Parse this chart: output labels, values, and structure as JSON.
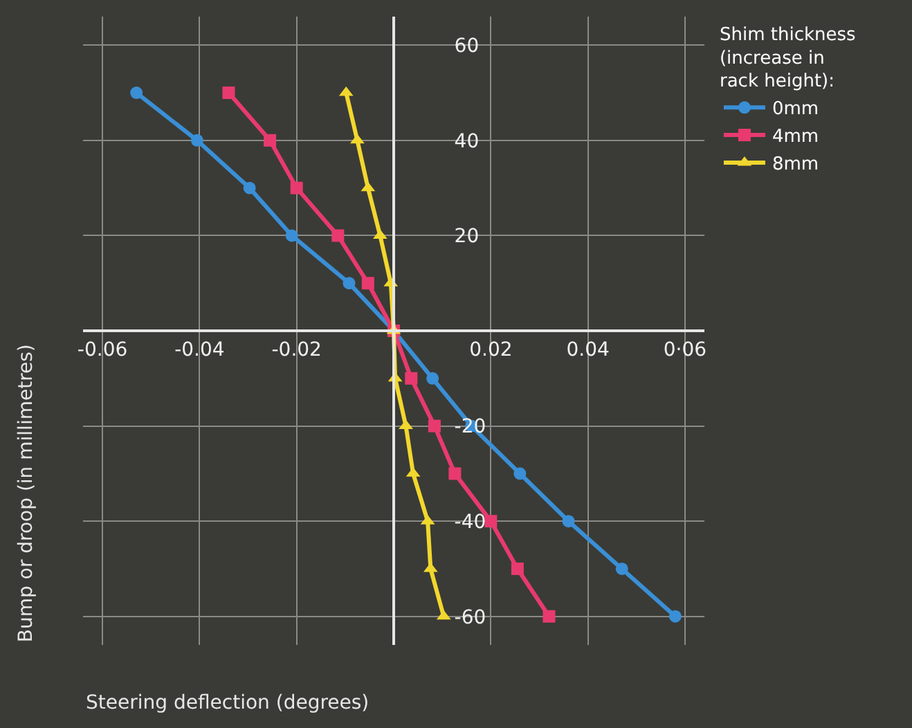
{
  "chart_data": {
    "type": "line",
    "xlabel": "Steering deflection (degrees)",
    "ylabel": "Bump or droop (in millimetres)",
    "legend_title": "Shim thickness (increase in rack height):",
    "legend": "right",
    "grid": true,
    "line_style": "solid",
    "xlim": [
      -0.064,
      0.064
    ],
    "ylim": [
      -66,
      66
    ],
    "xticks": [
      -0.06,
      -0.04,
      -0.02,
      0.02,
      0.04,
      {
        "value": 0.06,
        "label": "0·06"
      }
    ],
    "yticks": [
      -60,
      -40,
      -20,
      20,
      40,
      60
    ],
    "series": [
      {
        "name": "0mm",
        "color": "#3a8fd6",
        "marker": "circle",
        "x": [
          -0.053,
          -0.0405,
          -0.0297,
          -0.021,
          -0.0092,
          0,
          0.008,
          0.016,
          0.026,
          0.036,
          0.047,
          0.058
        ],
        "values": [
          50,
          40,
          30,
          20,
          10,
          0,
          -10,
          -20,
          -30,
          -40,
          -50,
          -60
        ]
      },
      {
        "name": "4mm",
        "color": "#e83a6e",
        "marker": "square",
        "x": [
          -0.034,
          -0.0255,
          -0.02,
          -0.0115,
          -0.0053,
          0,
          0.0036,
          0.0084,
          0.0126,
          0.02,
          0.0255,
          0.032
        ],
        "values": [
          50,
          40,
          30,
          20,
          10,
          0,
          -10,
          -20,
          -30,
          -40,
          -50,
          -60
        ]
      },
      {
        "name": "8mm",
        "color": "#f2d72e",
        "marker": "triangle",
        "x": [
          -0.0098,
          -0.0075,
          -0.0053,
          -0.0028,
          -0.0006,
          0,
          0.0003,
          0.0025,
          0.004,
          0.007,
          0.0076,
          0.0103
        ],
        "values": [
          50,
          40,
          30,
          20,
          10,
          0,
          -10,
          -20,
          -30,
          -40,
          -50,
          -60
        ]
      }
    ]
  }
}
